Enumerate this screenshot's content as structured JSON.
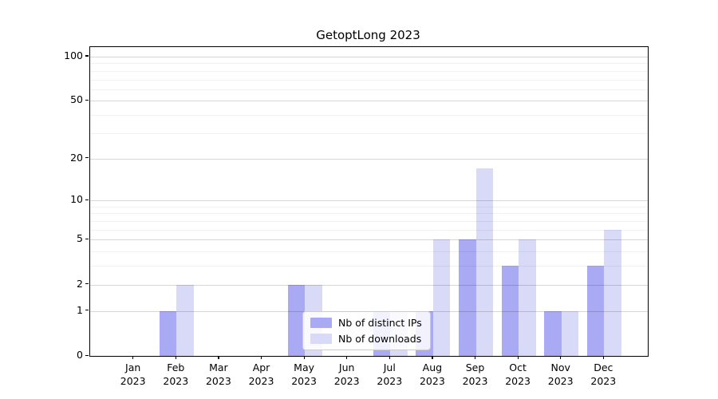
{
  "chart_data": {
    "type": "bar",
    "title": "GetoptLong 2023",
    "months": [
      "Jan",
      "Feb",
      "Mar",
      "Apr",
      "May",
      "Jun",
      "Jul",
      "Aug",
      "Sep",
      "Oct",
      "Nov",
      "Dec"
    ],
    "x_tick_year": "2023",
    "series": [
      {
        "name": "Nb of distinct IPs",
        "key": "distinct-ips",
        "color": "#a9a9f4",
        "values": [
          0,
          1,
          0,
          0,
          2,
          0,
          1,
          1,
          5,
          3,
          1,
          3
        ]
      },
      {
        "name": "Nb of downloads",
        "key": "downloads",
        "color": "#d9d9f8",
        "values": [
          0,
          2,
          0,
          0,
          2,
          0,
          1,
          5,
          17,
          5,
          1,
          6
        ]
      }
    ],
    "y_axis": {
      "scale": "log1p",
      "major_ticks": [
        0,
        1,
        2,
        5,
        10,
        20,
        50,
        100
      ],
      "minor_gridlines": [
        3,
        4,
        6,
        7,
        8,
        9,
        30,
        40,
        60,
        70,
        80,
        90
      ],
      "ymax": 116
    },
    "grid": {
      "major": true,
      "minor": true,
      "grid_above_bars": true
    },
    "legend": {
      "position": "lower center"
    },
    "colors": {
      "spine": "#000000",
      "text": "#000000",
      "grid_major": "#d6d6d6",
      "grid_minor": "#f0f0f0",
      "background": "#ffffff"
    }
  }
}
